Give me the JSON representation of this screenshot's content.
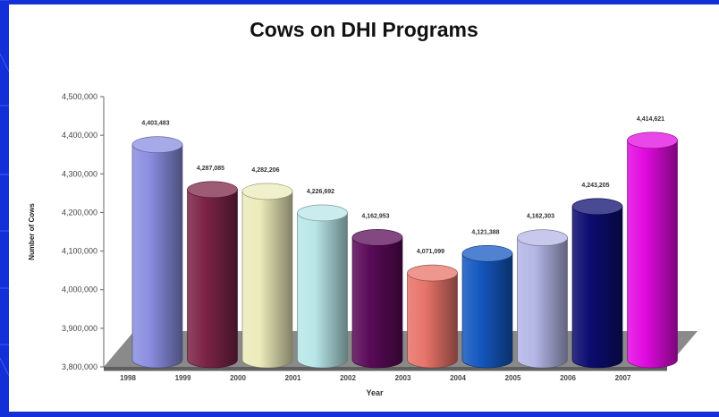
{
  "chart_data": {
    "type": "bar",
    "title": "Cows on DHI Programs",
    "xlabel": "Year",
    "ylabel": "Number of Cows",
    "categories": [
      "1998",
      "1999",
      "2000",
      "2001",
      "2002",
      "2003",
      "2004",
      "2005",
      "2006",
      "2007"
    ],
    "values": [
      4403483,
      4287085,
      4282206,
      4226692,
      4162953,
      4071099,
      4121388,
      4162303,
      4243205,
      4414621
    ],
    "value_labels": [
      "4,403,483",
      "4,287,085",
      "4,282,206",
      "4,226,692",
      "4,162,953",
      "4,071,099",
      "4,121,388",
      "4,162,303",
      "4,243,205",
      "4,414,621"
    ],
    "ylim": [
      3800000,
      4500000
    ],
    "yticks": [
      3800000,
      3900000,
      4000000,
      4100000,
      4200000,
      4300000,
      4400000,
      4500000
    ],
    "ytick_labels": [
      "3,800,000",
      "3,900,000",
      "4,000,000",
      "4,100,000",
      "4,200,000",
      "4,300,000",
      "4,400,000",
      "4,500,000"
    ],
    "colors": [
      "#8a8ee0",
      "#7c2446",
      "#ecebbb",
      "#b8e6e8",
      "#5a0a58",
      "#e8746a",
      "#1458c0",
      "#b4b6e6",
      "#0c0c70",
      "#e20ae0"
    ],
    "style": "3d-cylinder",
    "grid": false,
    "legend": "none"
  }
}
